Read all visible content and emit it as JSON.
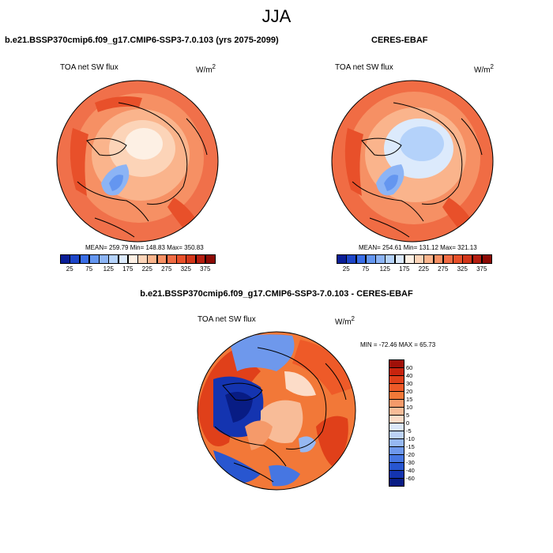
{
  "title": "JJA",
  "panels": [
    {
      "id": "model",
      "header": "b.e21.BSSP370cmip6.f09_g17.CMIP6-SSP3-7.0.103 (yrs 2075-2099)",
      "variable": "TOA net SW flux",
      "units_base": "W/m",
      "units_exp": "2",
      "stats": "MEAN= 259.79  Min= 148.83  Max= 350.83"
    },
    {
      "id": "obs",
      "header": "CERES-EBAF",
      "variable": "TOA net SW flux",
      "units_base": "W/m",
      "units_exp": "2",
      "stats": "MEAN= 254.61  Min= 131.12  Max= 321.13"
    },
    {
      "id": "diff",
      "header": "b.e21.BSSP370cmip6.f09_g17.CMIP6-SSP3-7.0.103 - CERES-EBAF",
      "variable": "TOA net SW flux",
      "units_base": "W/m",
      "units_exp": "2",
      "stats": "MIN = -72.46 MAX =  65.73"
    }
  ],
  "colorbar_abs": {
    "labels": [
      "25",
      "75",
      "125",
      "175",
      "225",
      "275",
      "325",
      "375"
    ],
    "colors": [
      "#0a1e96",
      "#1e46c8",
      "#3a6ee6",
      "#6496f0",
      "#8cb4f5",
      "#b4d2fa",
      "#dceafc",
      "#fdf0e4",
      "#fcd4b8",
      "#fab48c",
      "#f69064",
      "#f06c44",
      "#e8502a",
      "#d2361a",
      "#b41e10",
      "#8c0a04"
    ]
  },
  "colorbar_diff": {
    "labels": [
      "60",
      "40",
      "30",
      "20",
      "15",
      "10",
      "5",
      "0",
      "-5",
      "-10",
      "-15",
      "-20",
      "-30",
      "-40",
      "-60"
    ],
    "colors": [
      "#a01008",
      "#c8240e",
      "#e0401a",
      "#ee5a28",
      "#f27838",
      "#f59a6a",
      "#f8bc98",
      "#fcdcc8",
      "#dce8fa",
      "#bcd2f6",
      "#96b8f2",
      "#6e98ec",
      "#4676e2",
      "#2856d0",
      "#1434b0",
      "#081c84"
    ]
  }
}
